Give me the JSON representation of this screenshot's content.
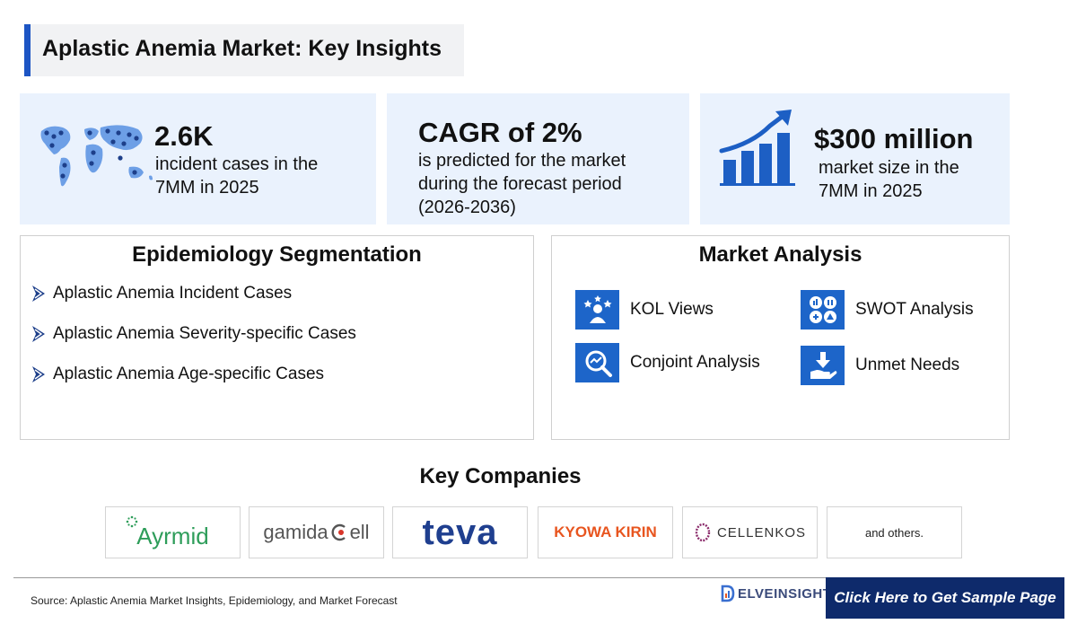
{
  "header": {
    "title": "Aplastic Anemia Market: Key Insights"
  },
  "stats": [
    {
      "value": "2.6K",
      "lines": [
        "incident cases in the",
        "7MM in 2025"
      ],
      "icon": "world-map-icon"
    },
    {
      "value": "CAGR of 2%",
      "lines": [
        "is predicted for the market",
        "during the forecast period",
        "(2026-2036)"
      ],
      "icon": ""
    },
    {
      "value": "$300 million",
      "lines": [
        "market size in the",
        "7MM in 2025"
      ],
      "icon": "growth-bar-chart-icon"
    }
  ],
  "epidemiology": {
    "title": "Epidemiology Segmentation",
    "items": [
      "Aplastic Anemia Incident Cases",
      "Aplastic Anemia Severity-specific Cases",
      "Aplastic Anemia Age-specific Cases"
    ]
  },
  "market_analysis": {
    "title": "Market Analysis",
    "items": [
      {
        "label": "KOL Views",
        "icon": "kol-views-icon"
      },
      {
        "label": "SWOT Analysis",
        "icon": "swot-icon"
      },
      {
        "label": "Conjoint Analysis",
        "icon": "conjoint-analysis-icon"
      },
      {
        "label": "Unmet Needs",
        "icon": "unmet-needs-icon"
      }
    ]
  },
  "companies": {
    "title": "Key Companies",
    "logos": [
      {
        "name": "Ayrmid",
        "text": "Ayrmid",
        "color": "#2e9d5a"
      },
      {
        "name": "Gamida Cell",
        "text_a": "gamida ",
        "text_b": "ell",
        "color": "#555555",
        "accent": "#d8362a"
      },
      {
        "name": "Teva",
        "text": "teva",
        "color": "#1f3f8f",
        "accent": "#1ea0a4"
      },
      {
        "name": "Kyowa Kirin",
        "text": "KYOWA KIRIN",
        "color": "#e8551f"
      },
      {
        "name": "Cellenkos",
        "text": "CELLENKOS",
        "color": "#333333",
        "accent": "#8a2a6a"
      },
      {
        "name": "others",
        "text": "and others."
      }
    ]
  },
  "footer": {
    "source": "Source: Aplastic Anemia Market Insights, Epidemiology, and Market Forecast",
    "brand": "ELVEINSIGHT",
    "cta": "Click Here to Get Sample Page"
  },
  "colors": {
    "accent_blue": "#1d65c9",
    "stat_bg": "#eaf2fd",
    "cta_bg": "#0e2a6b"
  }
}
